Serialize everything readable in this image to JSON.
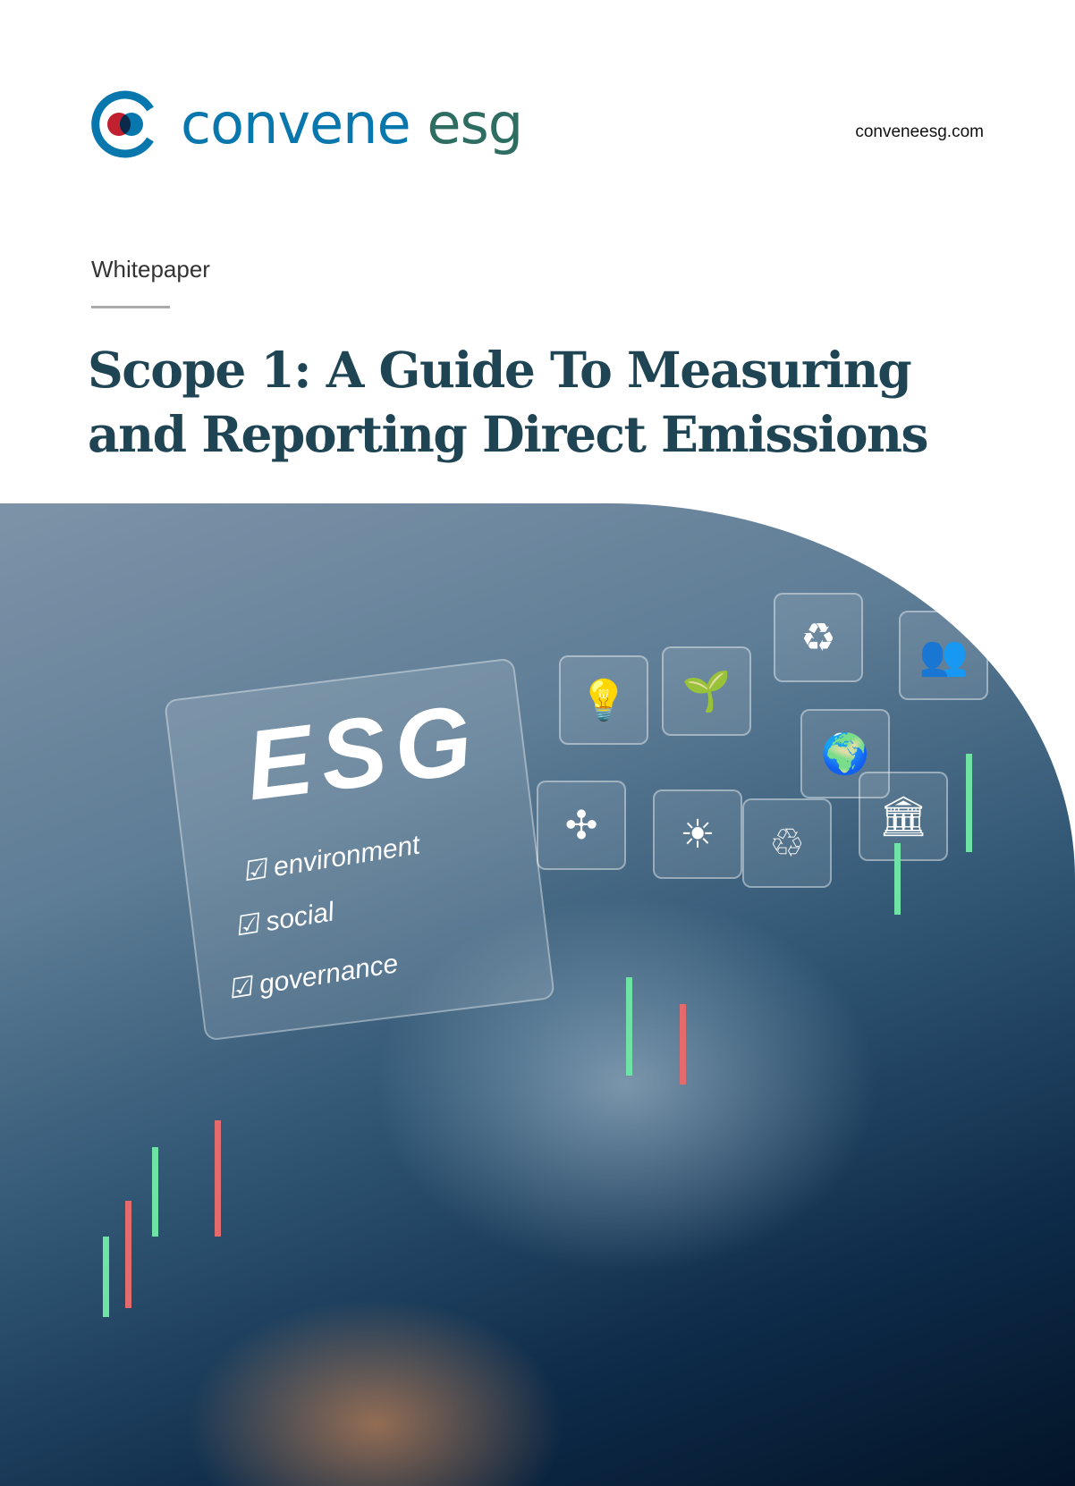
{
  "brand": {
    "logo_text_primary": "convene",
    "logo_text_secondary": "esg",
    "website": "conveneesg.com",
    "colors": {
      "blue": "#0877ad",
      "green": "#2e6e62",
      "red": "#c0202f",
      "title": "#1f4555"
    }
  },
  "document": {
    "kicker": "Whitepaper",
    "title": "Scope 1: A Guide To Measuring and Reporting Direct Emissions"
  },
  "hero": {
    "esg": "ESG",
    "items": [
      "environment",
      "social",
      "governance"
    ]
  }
}
